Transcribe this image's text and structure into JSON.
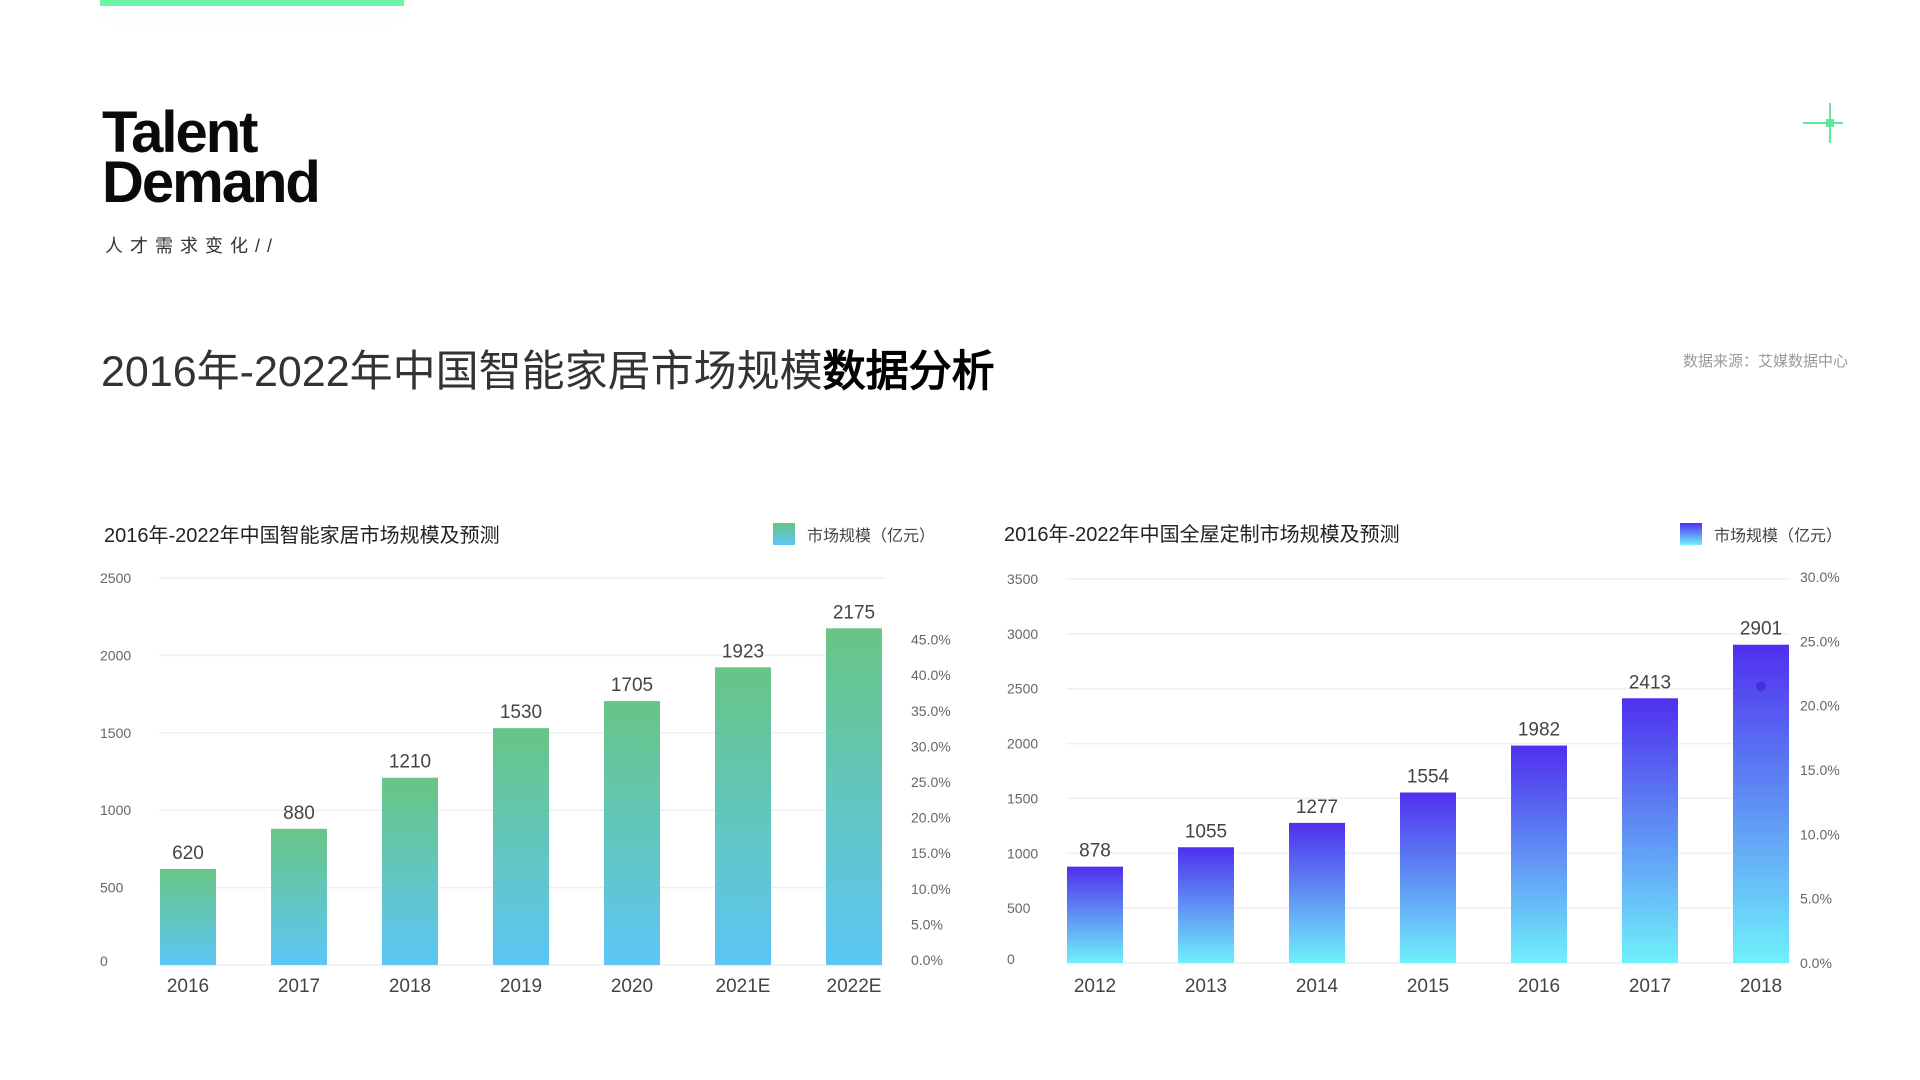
{
  "brand": {
    "line1": "Talent",
    "line2": "Demand",
    "subtitle": "人才需求变化//"
  },
  "heading": {
    "light": "2016年-2022年中国智能家居市场规模",
    "bold": "数据分析"
  },
  "source": "数据来源：艾媒数据中心",
  "colors": {
    "accent": "#6cf5a6",
    "green_top": "#68c585",
    "green_bottom": "#5cc6f6",
    "blue_top": "#4f2fee",
    "blue_bottom": "#70f0fb"
  },
  "chart_data": [
    {
      "type": "bar",
      "title": "2016年-2022年中国智能家居市场规模及预测",
      "legend": "市场规模（亿元）",
      "legend_position": "top-right",
      "categories": [
        "2016",
        "2017",
        "2018",
        "2019",
        "2020",
        "2021E",
        "2022E"
      ],
      "values": [
        620,
        880,
        1210,
        1530,
        1705,
        1923,
        2175
      ],
      "ylim": [
        0,
        2500
      ],
      "yticks": [
        "0",
        "500",
        "1000",
        "1500",
        "2000",
        "2500"
      ],
      "y2ticks": [
        "0.0%",
        "5.0%",
        "10.0%",
        "15.0%",
        "20.0%",
        "25.0%",
        "30.0%",
        "35.0%",
        "40.0%",
        "45.0%"
      ],
      "grid": true
    },
    {
      "type": "bar",
      "title": "2016年-2022年中国全屋定制市场规模及预测",
      "legend": "市场规模（亿元）",
      "legend_position": "top-right",
      "categories": [
        "2012",
        "2013",
        "2014",
        "2015",
        "2016",
        "2017",
        "2018"
      ],
      "values": [
        878,
        1055,
        1277,
        1554,
        1982,
        2413,
        2901
      ],
      "ylim": [
        0,
        3500
      ],
      "yticks": [
        "0",
        "500",
        "1000",
        "1500",
        "2000",
        "2500",
        "3000",
        "3500"
      ],
      "y2ticks": [
        "0.0%",
        "5.0%",
        "10.0%",
        "15.0%",
        "20.0%",
        "25.0%",
        "30.0%"
      ],
      "marker_point": 21.5,
      "grid": true
    }
  ]
}
